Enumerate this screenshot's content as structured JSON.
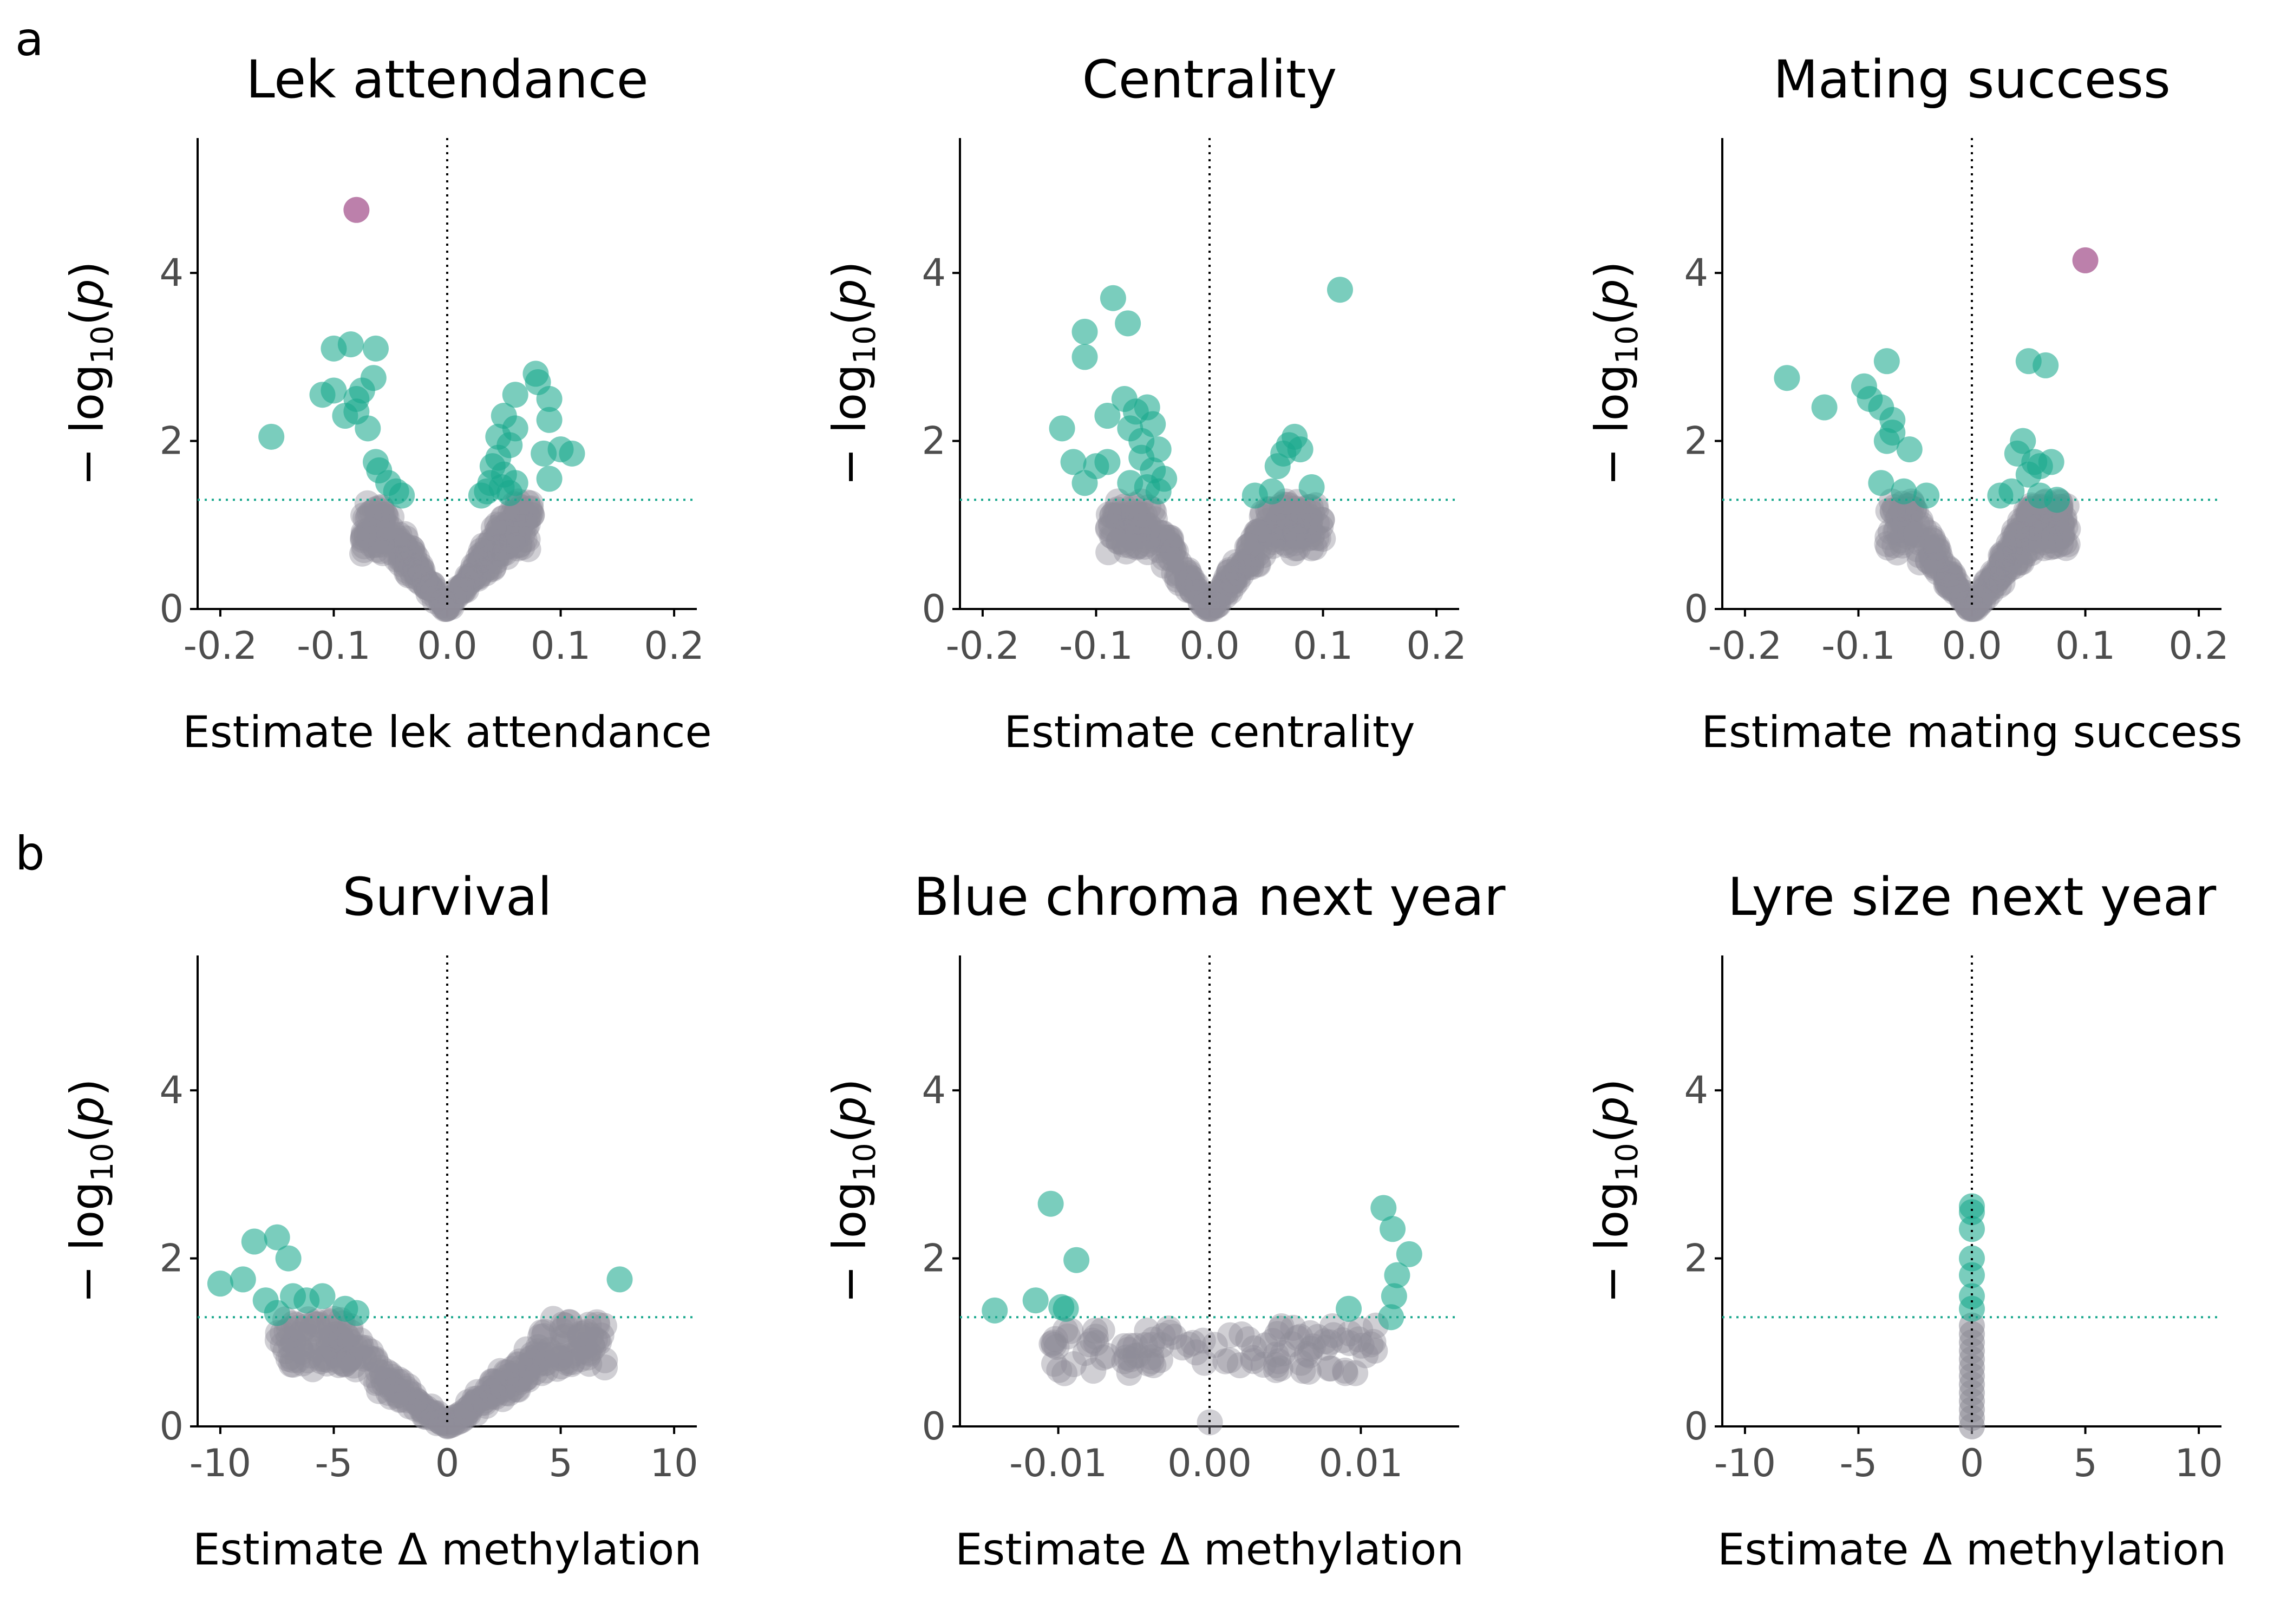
{
  "panel_letters": [
    "a",
    "b"
  ],
  "colors": {
    "significant": "#1aa88e",
    "top": "#b06a9c",
    "nonsignificant": "#8e8c98",
    "threshold_line": "#1aa88e",
    "zero_line": "#000000",
    "axis": "#000000",
    "tick_text": "#4d4d4d"
  },
  "threshold_y": 1.3,
  "ylabel": "−log10(p)",
  "chart_data": [
    {
      "type": "scatter",
      "title": "Lek attendance",
      "xlabel": "Estimate lek attendance",
      "xlim": [
        -0.22,
        0.22
      ],
      "ylim": [
        0,
        5.6
      ],
      "xticks": [
        -0.2,
        -0.1,
        0.0,
        0.1,
        0.2
      ],
      "xtick_labels": [
        "-0.2",
        "-0.1",
        "0.0",
        "0.1",
        "0.2"
      ],
      "yticks": [
        0,
        2,
        4
      ],
      "ytick_labels": [
        "0",
        "2",
        "4"
      ],
      "cloud": {
        "a": 23,
        "range": [
          -0.075,
          0.075
        ],
        "max_y": 1.28,
        "n": 320
      },
      "significant": [
        {
          "x": -0.155,
          "y": 2.05
        },
        {
          "x": -0.11,
          "y": 2.55
        },
        {
          "x": -0.1,
          "y": 3.1
        },
        {
          "x": -0.1,
          "y": 2.6
        },
        {
          "x": -0.085,
          "y": 3.15
        },
        {
          "x": -0.08,
          "y": 2.5
        },
        {
          "x": -0.08,
          "y": 2.35
        },
        {
          "x": -0.09,
          "y": 2.3
        },
        {
          "x": -0.075,
          "y": 2.6
        },
        {
          "x": -0.063,
          "y": 3.1
        },
        {
          "x": -0.065,
          "y": 2.75
        },
        {
          "x": -0.07,
          "y": 2.15
        },
        {
          "x": -0.063,
          "y": 1.75
        },
        {
          "x": -0.06,
          "y": 1.65
        },
        {
          "x": -0.052,
          "y": 1.5
        },
        {
          "x": -0.045,
          "y": 1.4
        },
        {
          "x": -0.04,
          "y": 1.35
        },
        {
          "x": 0.078,
          "y": 2.8
        },
        {
          "x": 0.08,
          "y": 2.7
        },
        {
          "x": 0.06,
          "y": 2.55
        },
        {
          "x": 0.09,
          "y": 2.5
        },
        {
          "x": 0.05,
          "y": 2.3
        },
        {
          "x": 0.09,
          "y": 2.25
        },
        {
          "x": 0.06,
          "y": 2.15
        },
        {
          "x": 0.045,
          "y": 2.05
        },
        {
          "x": 0.1,
          "y": 1.9
        },
        {
          "x": 0.085,
          "y": 1.85
        },
        {
          "x": 0.055,
          "y": 1.95
        },
        {
          "x": 0.045,
          "y": 1.8
        },
        {
          "x": 0.04,
          "y": 1.7
        },
        {
          "x": 0.05,
          "y": 1.6
        },
        {
          "x": 0.09,
          "y": 1.55
        },
        {
          "x": 0.038,
          "y": 1.5
        },
        {
          "x": 0.048,
          "y": 1.45
        },
        {
          "x": 0.035,
          "y": 1.4
        },
        {
          "x": 0.055,
          "y": 1.38
        },
        {
          "x": 0.03,
          "y": 1.35
        },
        {
          "x": 0.06,
          "y": 1.5
        },
        {
          "x": 0.11,
          "y": 1.85
        }
      ],
      "top": [
        {
          "x": -0.08,
          "y": 4.75
        }
      ]
    },
    {
      "type": "scatter",
      "title": "Centrality",
      "xlabel": "Estimate centrality",
      "xlim": [
        -0.22,
        0.22
      ],
      "ylim": [
        0,
        5.6
      ],
      "xticks": [
        -0.2,
        -0.1,
        0.0,
        0.1,
        0.2
      ],
      "xtick_labels": [
        "-0.2",
        "-0.1",
        "0.1",
        "0.2",
        "0.0"
      ],
      "xtick_label_order": [
        "-0.2",
        "-0.1",
        "0.0",
        "0.1",
        "0.2"
      ],
      "yticks": [
        0,
        2,
        4
      ],
      "ytick_labels": [
        "0",
        "2",
        "4"
      ],
      "cloud": {
        "a": 24,
        "range": [
          -0.09,
          0.1
        ],
        "max_y": 1.28,
        "n": 320
      },
      "significant": [
        {
          "x": -0.13,
          "y": 2.15
        },
        {
          "x": -0.12,
          "y": 1.75
        },
        {
          "x": -0.11,
          "y": 1.5
        },
        {
          "x": -0.11,
          "y": 3.3
        },
        {
          "x": -0.11,
          "y": 3.0
        },
        {
          "x": -0.09,
          "y": 2.3
        },
        {
          "x": -0.085,
          "y": 3.7
        },
        {
          "x": -0.072,
          "y": 3.4
        },
        {
          "x": -0.075,
          "y": 2.5
        },
        {
          "x": -0.07,
          "y": 2.15
        },
        {
          "x": -0.065,
          "y": 2.35
        },
        {
          "x": -0.06,
          "y": 2.0
        },
        {
          "x": -0.055,
          "y": 2.4
        },
        {
          "x": -0.05,
          "y": 2.2
        },
        {
          "x": -0.06,
          "y": 1.8
        },
        {
          "x": -0.05,
          "y": 1.65
        },
        {
          "x": -0.045,
          "y": 1.9
        },
        {
          "x": -0.04,
          "y": 1.55
        },
        {
          "x": -0.07,
          "y": 1.5
        },
        {
          "x": -0.09,
          "y": 1.75
        },
        {
          "x": -0.1,
          "y": 1.7
        },
        {
          "x": -0.055,
          "y": 1.45
        },
        {
          "x": -0.045,
          "y": 1.4
        },
        {
          "x": 0.075,
          "y": 2.05
        },
        {
          "x": 0.07,
          "y": 1.95
        },
        {
          "x": 0.065,
          "y": 1.85
        },
        {
          "x": 0.08,
          "y": 1.9
        },
        {
          "x": 0.06,
          "y": 1.7
        },
        {
          "x": 0.09,
          "y": 1.45
        },
        {
          "x": 0.04,
          "y": 1.35
        },
        {
          "x": 0.055,
          "y": 1.4
        },
        {
          "x": 0.115,
          "y": 3.8
        }
      ],
      "top": []
    },
    {
      "type": "scatter",
      "title": "Mating success",
      "xlabel": "Estimate mating success",
      "xlim": [
        -0.22,
        0.22
      ],
      "ylim": [
        0,
        5.6
      ],
      "xticks": [
        -0.2,
        -0.1,
        0.0,
        0.1,
        0.2
      ],
      "xtick_labels": [
        "-0.2",
        "-0.1",
        "0.0",
        "0.1",
        "0.2"
      ],
      "yticks": [
        0,
        2,
        4
      ],
      "ytick_labels": [
        "0",
        "2",
        "4"
      ],
      "cloud": {
        "a": 24,
        "range": [
          -0.075,
          0.085
        ],
        "max_y": 1.28,
        "n": 320
      },
      "significant": [
        {
          "x": -0.163,
          "y": 2.75
        },
        {
          "x": -0.13,
          "y": 2.4
        },
        {
          "x": -0.095,
          "y": 2.65
        },
        {
          "x": -0.09,
          "y": 2.5
        },
        {
          "x": -0.08,
          "y": 2.4
        },
        {
          "x": -0.075,
          "y": 2.95
        },
        {
          "x": -0.07,
          "y": 2.25
        },
        {
          "x": -0.075,
          "y": 2.0
        },
        {
          "x": -0.07,
          "y": 2.1
        },
        {
          "x": -0.055,
          "y": 1.9
        },
        {
          "x": -0.08,
          "y": 1.5
        },
        {
          "x": -0.06,
          "y": 1.4
        },
        {
          "x": -0.04,
          "y": 1.35
        },
        {
          "x": 0.05,
          "y": 2.95
        },
        {
          "x": 0.065,
          "y": 2.9
        },
        {
          "x": 0.045,
          "y": 2.0
        },
        {
          "x": 0.04,
          "y": 1.85
        },
        {
          "x": 0.055,
          "y": 1.75
        },
        {
          "x": 0.06,
          "y": 1.7
        },
        {
          "x": 0.07,
          "y": 1.75
        },
        {
          "x": 0.05,
          "y": 1.6
        },
        {
          "x": 0.035,
          "y": 1.4
        },
        {
          "x": 0.06,
          "y": 1.35
        },
        {
          "x": 0.025,
          "y": 1.35
        },
        {
          "x": 0.075,
          "y": 1.3
        }
      ],
      "top": [
        {
          "x": 0.1,
          "y": 4.15
        }
      ]
    },
    {
      "type": "scatter",
      "title": "Survival",
      "xlabel": "Estimate Δ methylation",
      "xlim": [
        -11,
        11
      ],
      "ylim": [
        0,
        5.6
      ],
      "xticks": [
        -10,
        -5,
        0,
        5,
        10
      ],
      "xtick_labels": [
        "-10",
        "-5",
        "0",
        "5",
        "10"
      ],
      "yticks": [
        0,
        2,
        4
      ],
      "ytick_labels": [
        "0",
        "2",
        "4"
      ],
      "cloud": {
        "a": 0.27,
        "range": [
          -7.5,
          7.0
        ],
        "max_y": 1.28,
        "n": 340
      },
      "significant": [
        {
          "x": -10.0,
          "y": 1.7
        },
        {
          "x": -9.0,
          "y": 1.75
        },
        {
          "x": -8.5,
          "y": 2.2
        },
        {
          "x": -7.5,
          "y": 2.25
        },
        {
          "x": -7.0,
          "y": 2.0
        },
        {
          "x": -8.0,
          "y": 1.5
        },
        {
          "x": -7.5,
          "y": 1.35
        },
        {
          "x": -6.8,
          "y": 1.55
        },
        {
          "x": -6.2,
          "y": 1.5
        },
        {
          "x": -5.5,
          "y": 1.55
        },
        {
          "x": -4.5,
          "y": 1.4
        },
        {
          "x": -4.0,
          "y": 1.35
        },
        {
          "x": 7.6,
          "y": 1.75
        }
      ],
      "top": []
    },
    {
      "type": "scatter",
      "title": "Blue chroma next year",
      "xlabel": "Estimate Δ methylation",
      "xlim": [
        -0.0165,
        0.0165
      ],
      "ylim": [
        0,
        5.6
      ],
      "xticks": [
        -0.01,
        0.0,
        0.01
      ],
      "xtick_labels": [
        "-0.01",
        "0.00",
        "0.01"
      ],
      "yticks": [
        0,
        2,
        4
      ],
      "ytick_labels": [
        "0",
        "2",
        "4"
      ],
      "cloud": {
        "a": 7200,
        "range": [
          -0.0105,
          0.011
        ],
        "max_y": 1.2,
        "n": 110
      },
      "significant": [
        {
          "x": -0.0142,
          "y": 1.38
        },
        {
          "x": -0.0115,
          "y": 1.5
        },
        {
          "x": -0.0098,
          "y": 1.42
        },
        {
          "x": -0.0095,
          "y": 1.4
        },
        {
          "x": -0.0088,
          "y": 1.98
        },
        {
          "x": -0.0105,
          "y": 2.65
        },
        {
          "x": 0.0092,
          "y": 1.4
        },
        {
          "x": 0.0115,
          "y": 2.6
        },
        {
          "x": 0.0121,
          "y": 2.35
        },
        {
          "x": 0.0132,
          "y": 2.05
        },
        {
          "x": 0.0124,
          "y": 1.8
        },
        {
          "x": 0.0122,
          "y": 1.55
        },
        {
          "x": 0.012,
          "y": 1.3
        }
      ],
      "top": []
    },
    {
      "type": "scatter",
      "title": "Lyre size next year",
      "xlabel": "Estimate Δ methylation",
      "xlim": [
        -11,
        11
      ],
      "ylim": [
        0,
        5.6
      ],
      "xticks": [
        -10,
        -5,
        0,
        5,
        10
      ],
      "xtick_labels": [
        "-10",
        "-5",
        "0",
        "5",
        "10"
      ],
      "yticks": [
        0,
        2,
        4
      ],
      "ytick_labels": [
        "0",
        "2",
        "4"
      ],
      "column": {
        "x": 0,
        "y_values": [
          0,
          0.1,
          0.2,
          0.3,
          0.4,
          0.5,
          0.6,
          0.7,
          0.8,
          0.9,
          1.0,
          1.1,
          1.2
        ]
      },
      "significant": [
        {
          "x": 0,
          "y": 1.4
        },
        {
          "x": 0,
          "y": 1.55
        },
        {
          "x": 0,
          "y": 1.8
        },
        {
          "x": 0,
          "y": 2.0
        },
        {
          "x": 0,
          "y": 2.35
        },
        {
          "x": 0,
          "y": 2.55
        },
        {
          "x": 0,
          "y": 2.62
        }
      ],
      "top": []
    }
  ]
}
